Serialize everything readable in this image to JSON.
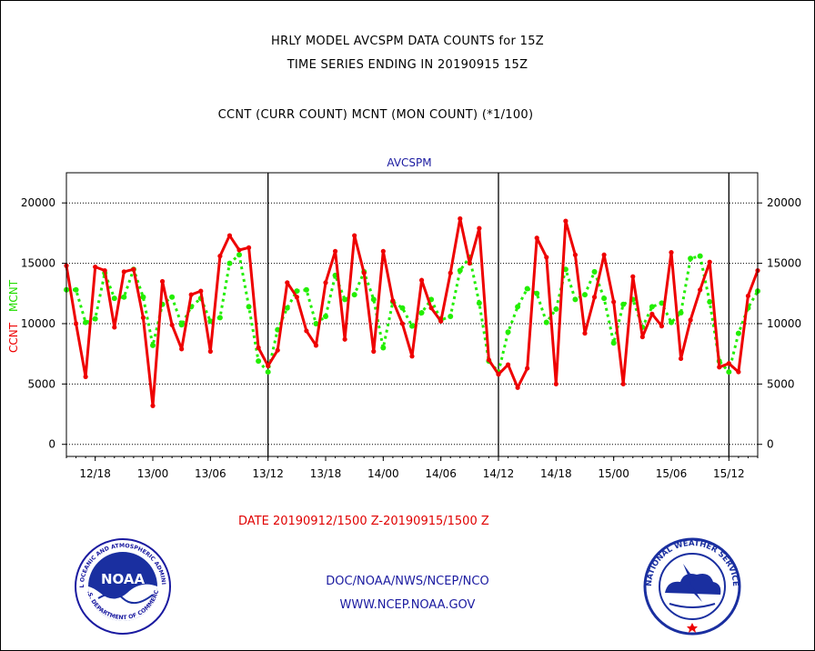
{
  "header": {
    "title_line1": "HRLY MODEL AVCSPM DATA COUNTS for 15Z",
    "title_line2": "TIME SERIES ENDING IN 20190915 15Z",
    "subtitle": "CCNT (CURR COUNT) MCNT (MON COUNT) (*1/100)"
  },
  "chart_data": {
    "type": "line",
    "title": "AVCSPM",
    "ylabel_series1": "CCNT",
    "ylabel_series2": "MCNT",
    "ylim": [
      -1000,
      22500
    ],
    "y_ticks": [
      0,
      5000,
      10000,
      15000,
      20000
    ],
    "x_tick_labels": [
      "12/18",
      "13/00",
      "13/06",
      "13/12",
      "13/18",
      "14/00",
      "14/06",
      "14/12",
      "14/18",
      "15/00",
      "15/06",
      "15/12"
    ],
    "day_boundaries_hours_from_start": [
      21,
      45,
      69
    ],
    "grid": "horizontal dotted",
    "x_start": "2019091215",
    "x_end": "2019091515",
    "series": [
      {
        "name": "CCNT",
        "color": "#ee0000",
        "values": [
          14800,
          10000,
          5600,
          14700,
          14400,
          9700,
          14300,
          14500,
          10500,
          3200,
          13500,
          9900,
          7900,
          12400,
          12700,
          7700,
          15600,
          17300,
          16100,
          16300,
          8000,
          6500,
          7800,
          13400,
          12200,
          9400,
          8200,
          13400,
          16000,
          8700,
          17300,
          14200,
          7700,
          16000,
          11900,
          10000,
          7300,
          13600,
          11300,
          10200,
          14200,
          18700,
          15000,
          17900,
          7000,
          5800,
          6600,
          4700,
          6300,
          17100,
          15500,
          5000,
          18500,
          15700,
          9200,
          12200,
          15700,
          11800,
          5000,
          13900,
          8900,
          10800,
          9800,
          15900,
          7100,
          10300,
          12800,
          15100,
          6400,
          6700,
          6000,
          12300,
          14400
        ]
      },
      {
        "name": "MCNT",
        "color": "#22ee00",
        "values": [
          12800,
          12800,
          10100,
          10400,
          14200,
          12100,
          12200,
          14500,
          12200,
          8200,
          11600,
          12200,
          9900,
          11400,
          12100,
          10200,
          10500,
          15000,
          15700,
          11400,
          6900,
          6000,
          9500,
          11300,
          12700,
          12800,
          10000,
          10600,
          14000,
          12000,
          12400,
          14300,
          12000,
          8000,
          11800,
          11300,
          9800,
          10900,
          12000,
          10300,
          10600,
          14400,
          15500,
          11700,
          6900,
          6000,
          9300,
          11400,
          12900,
          12500,
          10100,
          11200,
          14500,
          12000,
          12400,
          14300,
          12100,
          8400,
          11600,
          12000,
          9700,
          11400,
          11700,
          10100,
          10900,
          15400,
          15600,
          11800,
          6900,
          6000,
          9200,
          11300,
          12700
        ]
      }
    ]
  },
  "footer": {
    "date_range": "DATE 20190912/1500 Z-20190915/1500 Z",
    "org_line": "DOC/NOAA/NWS/NCEP/NCO",
    "url_line": "WWW.NCEP.NOAA.GOV"
  },
  "logos": {
    "noaa": {
      "center_text": "NOAA",
      "ring_text": "NATIONAL OCEANIC AND ATMOSPHERIC ADMINISTRATION",
      "bottom_text": "U.S. DEPARTMENT OF COMMERCE"
    },
    "nws": {
      "ring_text": "NATIONAL WEATHER SERVICE"
    }
  }
}
